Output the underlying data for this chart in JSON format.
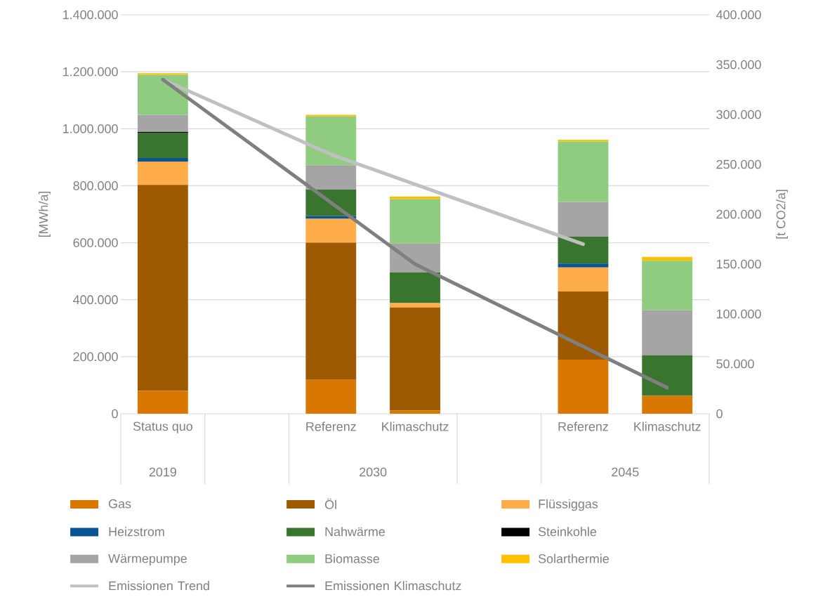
{
  "chart_data": {
    "type": "bar",
    "stacked": true,
    "categories": [
      "Status quo",
      null,
      "Referenz",
      "Klimaschutz",
      null,
      "Referenz",
      "Klimaschutz"
    ],
    "annotations": [
      "2019",
      "2030",
      "2045"
    ],
    "ylabel": "[MWh/a]",
    "y2label": "[t CO2/a]",
    "ylim": [
      0,
      1400000
    ],
    "yticks": [
      {
        "value": 0,
        "label": "0"
      },
      {
        "value": 200000,
        "label": "200.000"
      },
      {
        "value": 400000,
        "label": "400.000"
      },
      {
        "value": 600000,
        "label": "600.000"
      },
      {
        "value": 800000,
        "label": "800.000"
      },
      {
        "value": 1000000,
        "label": "1.000.000"
      },
      {
        "value": 1200000,
        "label": "1.200.000"
      },
      {
        "value": 1400000,
        "label": "1.400.000"
      }
    ],
    "y2lim": [
      0,
      400000
    ],
    "y2ticks": [
      {
        "value": 0,
        "label": "0"
      },
      {
        "value": 50000,
        "label": "50.000"
      },
      {
        "value": 100000,
        "label": "100.000"
      },
      {
        "value": 150000,
        "label": "150.000"
      },
      {
        "value": 200000,
        "label": "200.000"
      },
      {
        "value": 250000,
        "label": "250.000"
      },
      {
        "value": 300000,
        "label": "300.000"
      },
      {
        "value": 350000,
        "label": "350.000"
      },
      {
        "value": 400000,
        "label": "400.000"
      }
    ],
    "grid": "y",
    "legend": "bottom",
    "marker": "none",
    "series": [
      {
        "name": "Gas",
        "color": "#d87800",
        "values": [
          80000,
          null,
          119000,
          12000,
          null,
          190000,
          63000
        ]
      },
      {
        "name": "Öl",
        "color": "#9e5a00",
        "values": [
          723000,
          null,
          481000,
          361000,
          null,
          239000,
          0
        ]
      },
      {
        "name": "Flüssiggas",
        "color": "#ffad4a",
        "values": [
          82000,
          null,
          84000,
          15000,
          null,
          84000,
          0
        ]
      },
      {
        "name": "Heizstrom",
        "color": "#0a5494",
        "values": [
          12000,
          null,
          10000,
          0,
          null,
          14000,
          0
        ]
      },
      {
        "name": "Nahwärme",
        "color": "#3a7530",
        "values": [
          89000,
          null,
          92000,
          108000,
          null,
          95000,
          142000
        ]
      },
      {
        "name": "Steinkohle",
        "color": "#000000",
        "values": [
          3000,
          null,
          0,
          0,
          null,
          0,
          0
        ]
      },
      {
        "name": "Wärmepumpe",
        "color": "#a5a5a5",
        "values": [
          60000,
          null,
          86000,
          101000,
          null,
          121000,
          158000
        ]
      },
      {
        "name": "Biomasse",
        "color": "#8fcc7f",
        "values": [
          140000,
          null,
          171000,
          156000,
          null,
          212000,
          174000
        ]
      },
      {
        "name": "Solarthermie",
        "color": "#ffc000",
        "values": [
          6000,
          null,
          6000,
          9000,
          null,
          6000,
          13000
        ]
      },
      {
        "name": "Emissionen Trend",
        "type": "line",
        "axis": "y2",
        "color": "#c0c0c0",
        "values": [
          335000,
          null,
          260000,
          null,
          null,
          170000,
          null
        ]
      },
      {
        "name": "Emissionen Klimaschutz",
        "type": "line",
        "axis": "y2",
        "color": "#7f7f7f",
        "values": [
          335000,
          null,
          null,
          150000,
          null,
          null,
          26000
        ]
      }
    ]
  }
}
